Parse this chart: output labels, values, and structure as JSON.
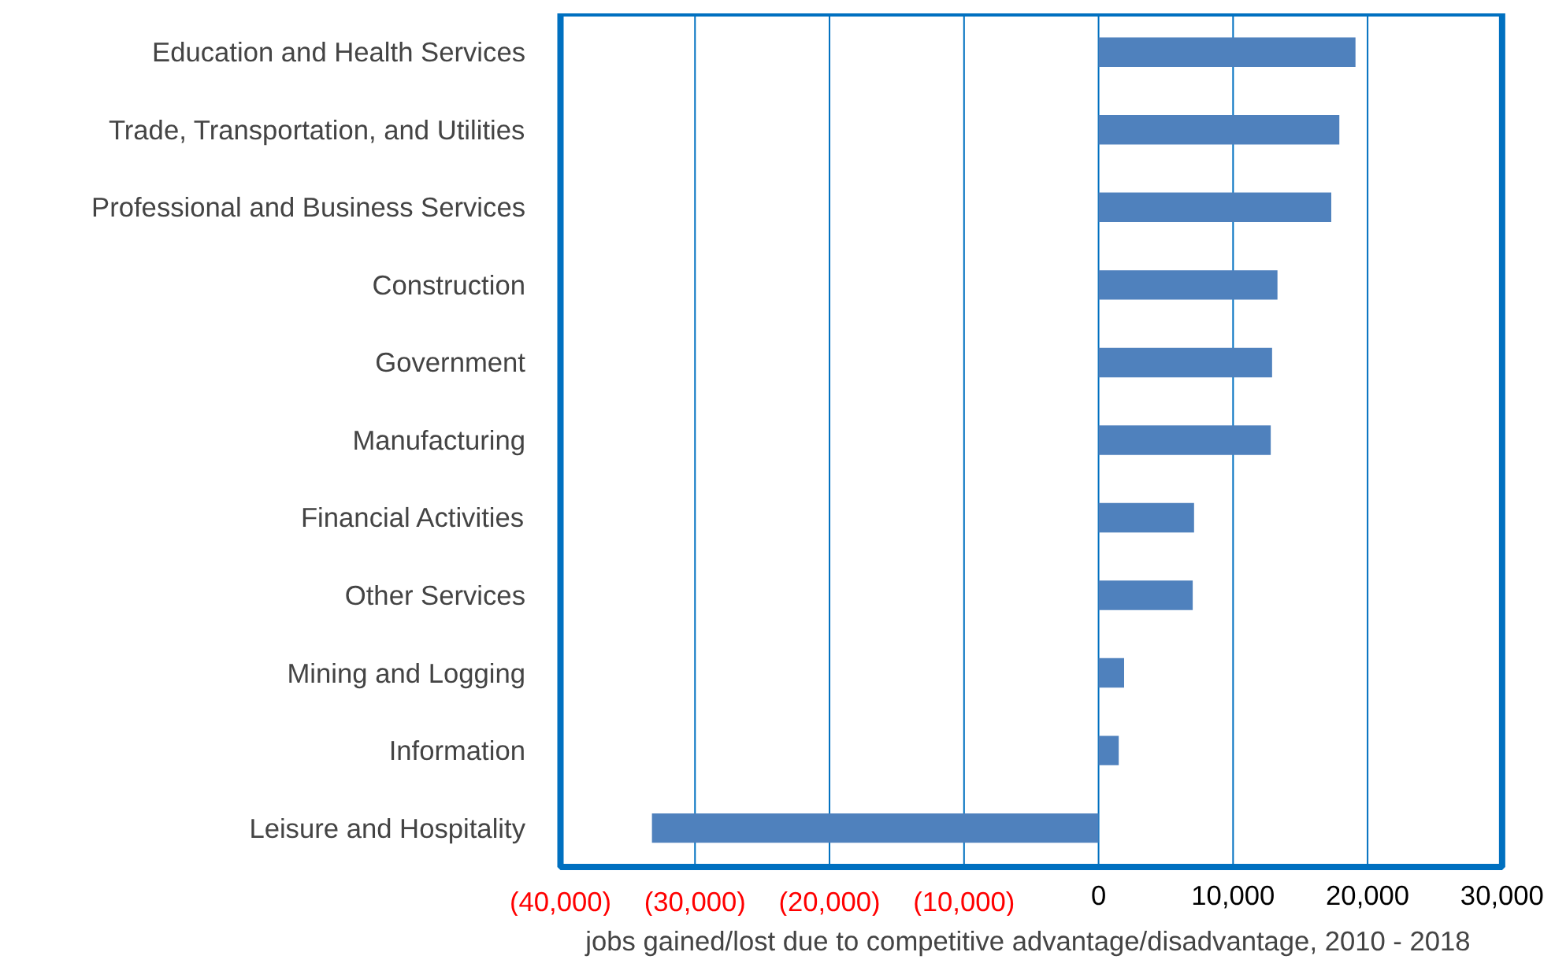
{
  "chart_data": {
    "type": "bar",
    "orientation": "horizontal",
    "xlabel": "jobs gained/lost due to competitive advantage/disadvantage, 2010 - 2018",
    "categories": [
      "Education and Health Services",
      "Trade, Transportation, and Utilities",
      "Professional and Business Services",
      "Construction",
      "Government",
      "Manufacturing",
      "Financial Activities",
      "Other Services",
      "Mining and Logging",
      "Information",
      "Leisure and Hospitality"
    ],
    "values": [
      19100,
      17900,
      17300,
      13300,
      12900,
      12800,
      7100,
      7000,
      1900,
      1500,
      -33200
    ],
    "color": "#4f81bd",
    "xlim": [
      -40000,
      30000
    ],
    "xticks": [
      {
        "value": -40000,
        "label": "(40,000)"
      },
      {
        "value": -30000,
        "label": "(30,000)"
      },
      {
        "value": -20000,
        "label": "(20,000)"
      },
      {
        "value": -10000,
        "label": "(10,000)"
      },
      {
        "value": 0,
        "label": "0"
      },
      {
        "value": 10000,
        "label": "10,000"
      },
      {
        "value": 20000,
        "label": "20,000"
      },
      {
        "value": 30000,
        "label": "30,000"
      }
    ],
    "grid": "x",
    "legend": false
  }
}
